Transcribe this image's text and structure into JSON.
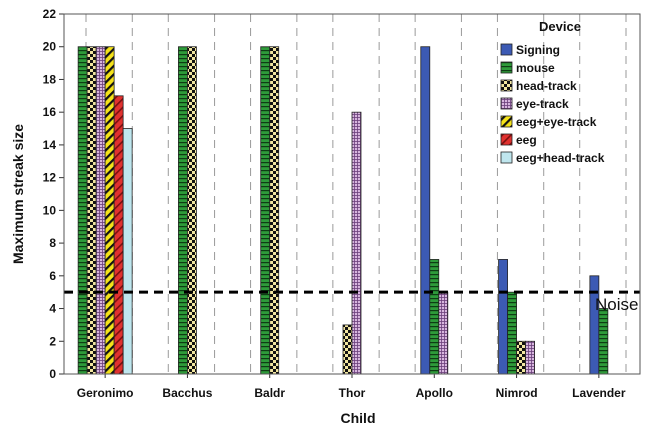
{
  "chart_data": {
    "type": "bar",
    "xlabel": "Child",
    "ylabel": "Maximum streak size",
    "ylim": [
      0,
      22
    ],
    "yticks": [
      0,
      2,
      4,
      6,
      8,
      10,
      12,
      14,
      16,
      18,
      20,
      22
    ],
    "grid": "vertical dashed",
    "legend": {
      "title": "Device",
      "position": "top-right"
    },
    "categories": [
      "Geronimo",
      "Bacchus",
      "Baldr",
      "Thor",
      "Apollo",
      "Nimrod",
      "Lavender"
    ],
    "series": [
      {
        "name": "Signing",
        "color": "#3c5ab4",
        "pattern": "solid",
        "values": [
          null,
          null,
          null,
          null,
          20,
          7,
          6
        ]
      },
      {
        "name": "mouse",
        "color": "#2e9b3a",
        "pattern": "hstripes",
        "values": [
          20,
          20,
          20,
          null,
          7,
          5,
          4
        ]
      },
      {
        "name": "head-track",
        "color": "#e8d35a",
        "pattern": "checker",
        "values": [
          20,
          20,
          20,
          3,
          null,
          2,
          null
        ]
      },
      {
        "name": "eye-track",
        "color": "#b98fc4",
        "pattern": "grid",
        "values": [
          20,
          null,
          null,
          16,
          5,
          2,
          null
        ]
      },
      {
        "name": "eeg+eye-track",
        "color": "#f4e21a",
        "pattern": "diag",
        "values": [
          20,
          null,
          null,
          null,
          null,
          null,
          null
        ]
      },
      {
        "name": "eeg",
        "color": "#e0312f",
        "pattern": "diagred",
        "values": [
          17,
          null,
          null,
          null,
          null,
          null,
          null
        ]
      },
      {
        "name": "eeg+head-track",
        "color": "#bfe6ee",
        "pattern": "solid",
        "values": [
          15,
          null,
          null,
          null,
          null,
          null,
          null
        ]
      }
    ],
    "reference_line": {
      "y": 5,
      "label": "Noise",
      "style": "dashed"
    }
  }
}
